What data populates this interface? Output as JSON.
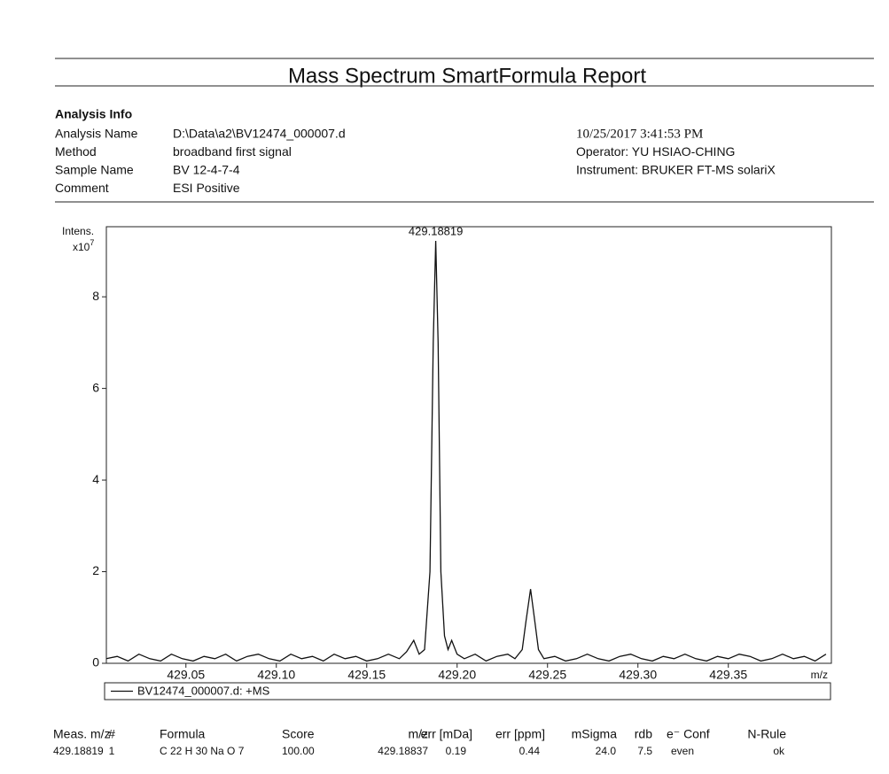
{
  "header": {
    "title": "Mass Spectrum SmartFormula Report"
  },
  "analysis_info": {
    "heading": "Analysis Info",
    "fields": [
      {
        "label": "Analysis Name",
        "value": "D:\\Data\\a2\\BV12474_000007.d"
      },
      {
        "label": "Method",
        "value": "broadband first signal"
      },
      {
        "label": "Sample Name",
        "value": "BV 12-4-7-4"
      },
      {
        "label": "Comment",
        "value": "ESI Positive"
      }
    ],
    "right": [
      "10/25/2017 3:41:53 PM",
      "Operator: YU HSIAO-CHING",
      "Instrument: BRUKER   FT-MS  solariX"
    ]
  },
  "chart_data": {
    "type": "line",
    "y_label": "Intens.",
    "y_multiplier": "x10",
    "y_exponent": "7",
    "x_label": "m/z",
    "xlim": [
      429.006,
      429.407
    ],
    "ylim": [
      0,
      9.53
    ],
    "xticks": [
      429.05,
      {
        "value": 429.1,
        "label": "429.10"
      },
      429.15,
      {
        "value": 429.2,
        "label": "429.20"
      },
      429.25,
      {
        "value": 429.3,
        "label": "429.30"
      },
      429.35
    ],
    "yticks": [
      0,
      2,
      4,
      6,
      8
    ],
    "peak_labels": [
      {
        "x": 429.18819,
        "y": 9.22
      }
    ],
    "x": [
      429.006,
      429.012,
      429.018,
      429.024,
      429.03,
      429.036,
      429.042,
      429.048,
      429.054,
      429.06,
      429.066,
      429.072,
      429.078,
      429.084,
      429.09,
      429.096,
      429.102,
      429.108,
      429.114,
      429.12,
      429.126,
      429.132,
      429.138,
      429.144,
      429.15,
      429.156,
      429.162,
      429.168,
      429.172,
      429.176,
      429.179,
      429.182,
      429.185,
      429.1868,
      429.18819,
      429.1895,
      429.191,
      429.193,
      429.195,
      429.197,
      429.2,
      429.204,
      429.21,
      429.216,
      429.222,
      429.228,
      429.232,
      429.236,
      429.238,
      429.2406,
      429.243,
      429.245,
      429.248,
      429.254,
      429.26,
      429.266,
      429.272,
      429.278,
      429.284,
      429.29,
      429.296,
      429.302,
      429.308,
      429.314,
      429.32,
      429.326,
      429.332,
      429.338,
      429.344,
      429.35,
      429.356,
      429.362,
      429.368,
      429.374,
      429.38,
      429.386,
      429.392,
      429.398,
      429.404
    ],
    "series": [
      {
        "name": "BV12474_000007.d: +MS",
        "color": "#111111",
        "values": [
          0.1,
          0.15,
          0.05,
          0.2,
          0.1,
          0.05,
          0.2,
          0.1,
          0.05,
          0.15,
          0.1,
          0.2,
          0.05,
          0.15,
          0.2,
          0.1,
          0.05,
          0.2,
          0.1,
          0.15,
          0.05,
          0.2,
          0.1,
          0.15,
          0.05,
          0.1,
          0.2,
          0.1,
          0.25,
          0.5,
          0.2,
          0.3,
          2.0,
          7.0,
          9.22,
          7.0,
          2.0,
          0.6,
          0.3,
          0.5,
          0.2,
          0.1,
          0.2,
          0.05,
          0.15,
          0.2,
          0.1,
          0.3,
          0.9,
          1.62,
          0.9,
          0.3,
          0.1,
          0.15,
          0.05,
          0.1,
          0.2,
          0.1,
          0.05,
          0.15,
          0.2,
          0.1,
          0.05,
          0.15,
          0.1,
          0.2,
          0.1,
          0.05,
          0.15,
          0.1,
          0.2,
          0.15,
          0.05,
          0.1,
          0.2,
          0.1,
          0.15,
          0.05,
          0.2
        ]
      }
    ]
  },
  "table": {
    "header": [
      "Meas. m/z",
      "#",
      "Formula",
      "Score",
      "m/z",
      "err [mDa]",
      "err [ppm]",
      "mSigma",
      "rdb",
      "e⁻ Conf",
      "N-Rule"
    ],
    "rows": [
      [
        "429.18819",
        "1",
        "C 22 H 30 Na O 7",
        "100.00",
        "429.18837",
        "0.19",
        "0.44",
        "24.0",
        "7.5",
        "even",
        "ok"
      ]
    ]
  }
}
